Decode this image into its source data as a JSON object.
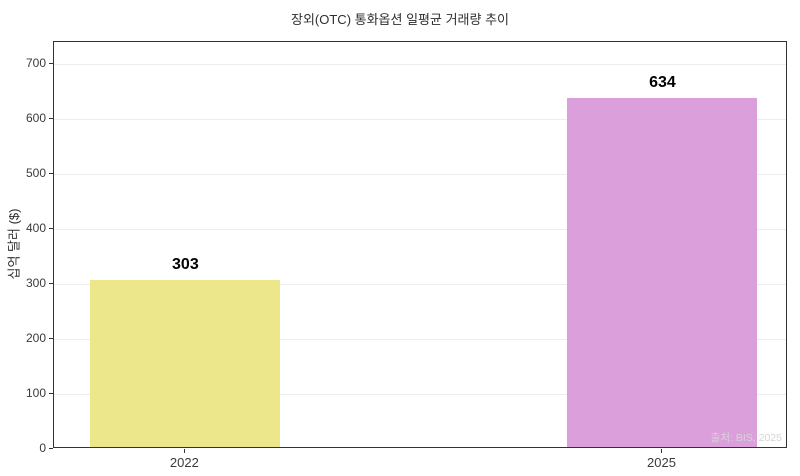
{
  "chart_data": {
    "type": "bar",
    "title": "장외(OTC) 통화옵션 일평균 거래량 추이",
    "categories": [
      "2022",
      "2025"
    ],
    "values": [
      303,
      634
    ],
    "value_labels": [
      "303",
      "634"
    ],
    "bar_colors": [
      "#ece78a",
      "#dba0dc"
    ],
    "xlabel": "",
    "ylabel": "십억 달러 ($)",
    "yticks": [
      0,
      100,
      200,
      300,
      400,
      500,
      600,
      700
    ],
    "ylim": [
      0,
      740
    ],
    "grid": "horizontal-light",
    "legend_position": "none",
    "source_note": "출처: BIS, 2025"
  }
}
